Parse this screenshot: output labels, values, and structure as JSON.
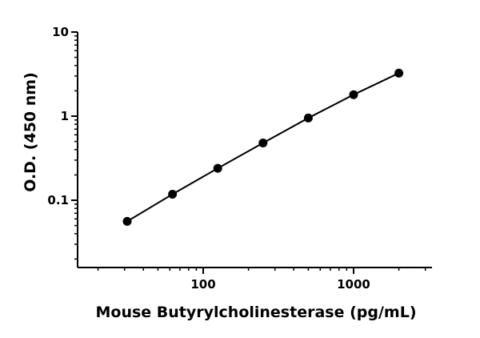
{
  "chart_data": {
    "type": "line",
    "title": "",
    "xlabel": "Mouse Butyrylcholinesterase (pg/mL)",
    "ylabel": "O.D. (450 nm)",
    "x_scale": "log",
    "y_scale": "log",
    "xlim": [
      15,
      3000
    ],
    "ylim": [
      0.01,
      10
    ],
    "x_tick_labels": [
      "100",
      "1000"
    ],
    "x_tick_values": [
      100,
      1000
    ],
    "y_tick_labels": [
      "0.1",
      "1",
      "10"
    ],
    "y_tick_values": [
      0.1,
      1,
      10
    ],
    "grid": false,
    "series": [
      {
        "x": [
          31.25,
          62.5,
          125,
          250,
          500,
          1000,
          2000
        ],
        "y": [
          0.056,
          0.118,
          0.24,
          0.48,
          0.95,
          1.8,
          3.25
        ],
        "marker": "circle",
        "color": "#000000"
      }
    ]
  }
}
